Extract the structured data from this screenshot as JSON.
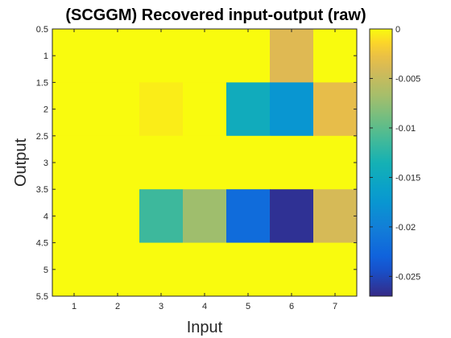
{
  "chart_data": {
    "type": "heatmap",
    "title": "(SCGGM) Recovered input-output (raw)",
    "xlabel": "Input",
    "ylabel": "Output",
    "x_categories": [
      1,
      2,
      3,
      4,
      5,
      6,
      7
    ],
    "y_categories": [
      1,
      2,
      3,
      4,
      5
    ],
    "xticks": [
      "1",
      "2",
      "3",
      "4",
      "5",
      "6",
      "7"
    ],
    "yticks": [
      "0.5",
      "1",
      "1.5",
      "2",
      "2.5",
      "3",
      "3.5",
      "4",
      "4.5",
      "5",
      "5.5"
    ],
    "xlim": [
      0.5,
      7.5
    ],
    "ylim": [
      0.5,
      5.5
    ],
    "y_direction": "reverse",
    "values": [
      [
        0,
        0,
        0,
        0,
        0,
        -0.0035,
        0
      ],
      [
        0,
        0,
        -0.0005,
        0,
        -0.0145,
        -0.0175,
        -0.003
      ],
      [
        0,
        0,
        0,
        0,
        0,
        0,
        0
      ],
      [
        0,
        0,
        -0.0115,
        -0.007,
        -0.022,
        -0.0265,
        -0.004
      ],
      [
        0,
        0,
        0,
        0,
        0,
        0,
        0
      ]
    ],
    "colorbar": {
      "range": [
        -0.027,
        0
      ],
      "ticks": [
        "0",
        "-0.005",
        "-0.01",
        "-0.015",
        "-0.02",
        "-0.025"
      ],
      "tick_values": [
        0,
        -0.005,
        -0.01,
        -0.015,
        -0.02,
        -0.025
      ],
      "colormap": "parula"
    },
    "grid": false
  }
}
